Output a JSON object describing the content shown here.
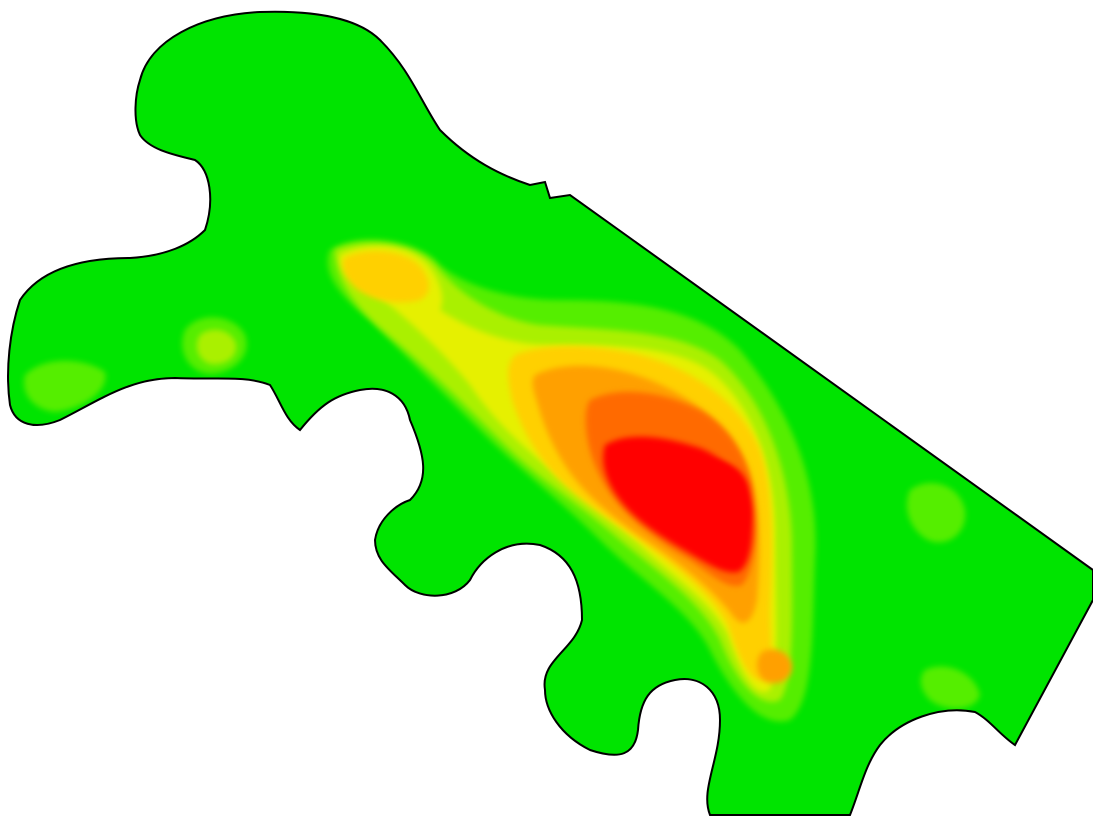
{
  "map": {
    "type": "heat map",
    "background_color": "#ffffff",
    "outline_color": "#000000",
    "palette": [
      "#00e400",
      "#55ee00",
      "#aaf000",
      "#e6f000",
      "#ffd000",
      "#ffa000",
      "#ff6a00",
      "#ff0000"
    ],
    "peak_level": 8
  }
}
